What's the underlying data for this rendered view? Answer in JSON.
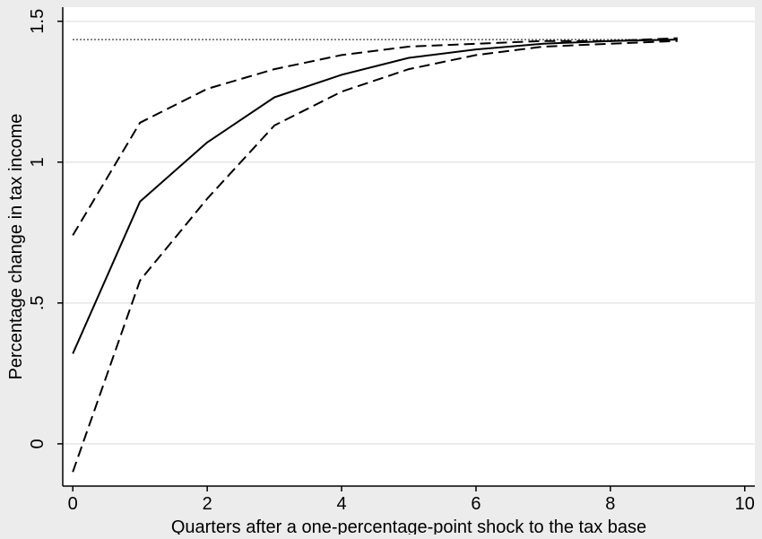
{
  "chart_data": {
    "type": "line",
    "title": "",
    "xlabel": "Quarters after a one-percentage-point shock to the tax base",
    "ylabel": "Percentage change in tax income",
    "xlim": [
      -0.15,
      10.15
    ],
    "ylim": [
      -0.15,
      1.55
    ],
    "x_ticks": [
      0,
      2,
      4,
      6,
      8,
      10
    ],
    "x_tick_labels": [
      "0",
      "2",
      "4",
      "6",
      "8",
      "10"
    ],
    "y_ticks": [
      0,
      0.5,
      1,
      1.5
    ],
    "y_tick_labels": [
      "0",
      ".5",
      "1",
      "1.5"
    ],
    "grid": "horizontal",
    "legend": "none",
    "background_color": "#ececec",
    "plot_background_color": "#ffffff",
    "line_color": "#000000",
    "reference_line": {
      "y": 1.435,
      "style": "dotted",
      "x_range": [
        0,
        9
      ]
    },
    "x": [
      0,
      1,
      2,
      3,
      4,
      5,
      6,
      7,
      8,
      9
    ],
    "series": [
      {
        "style": "solid",
        "values": [
          0.32,
          0.86,
          1.07,
          1.23,
          1.31,
          1.37,
          1.4,
          1.42,
          1.43,
          1.435
        ]
      },
      {
        "style": "dashed",
        "values": [
          0.74,
          1.14,
          1.26,
          1.33,
          1.38,
          1.41,
          1.42,
          1.43,
          1.43,
          1.44
        ]
      },
      {
        "style": "dashed",
        "values": [
          -0.1,
          0.58,
          0.87,
          1.13,
          1.25,
          1.33,
          1.38,
          1.41,
          1.42,
          1.43
        ]
      }
    ]
  }
}
